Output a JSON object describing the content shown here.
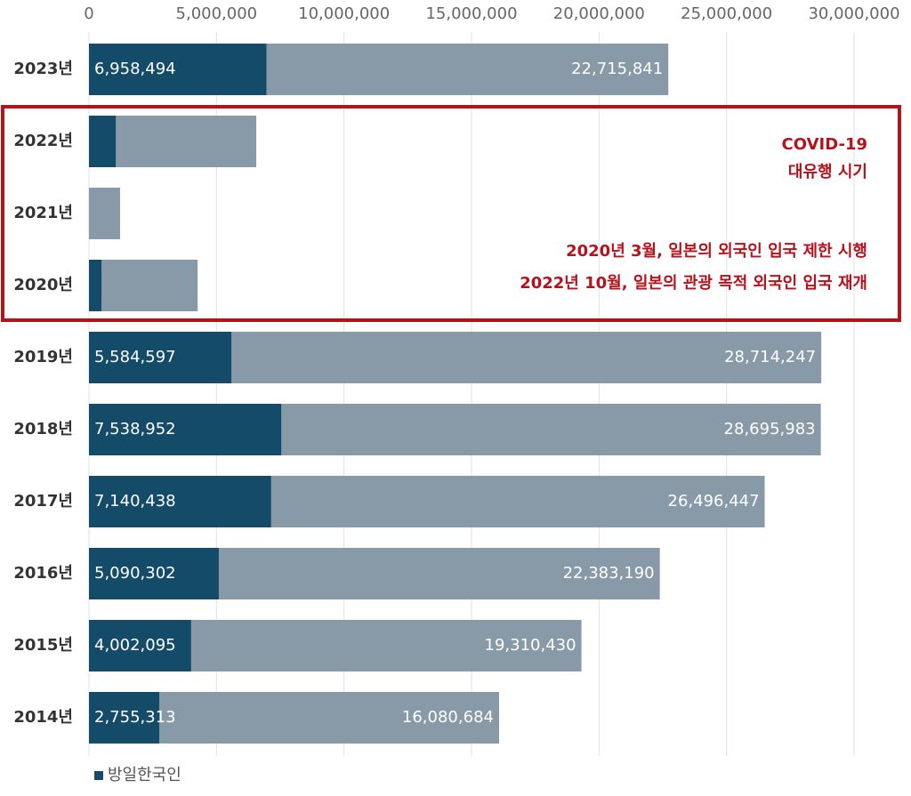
{
  "chart_data": {
    "type": "bar",
    "orientation": "horizontal",
    "overlap": true,
    "categories": [
      "2023년",
      "2022년",
      "2021년",
      "2020년",
      "2019년",
      "2018년",
      "2017년",
      "2016년",
      "2015년",
      "2014년"
    ],
    "series": [
      {
        "color": "#889aa8",
        "values": [
          22715841,
          6560000,
          1220000,
          4260000,
          28714247,
          28695983,
          26496447,
          22383190,
          19310430,
          16080684
        ],
        "value_labels": [
          "22,715,841",
          null,
          null,
          null,
          "28,714,247",
          "28,695,983",
          "26,496,447",
          "22,383,190",
          "19,310,430",
          "16,080,684"
        ]
      },
      {
        "name": "방일한국인",
        "color": "#134b68",
        "values": [
          6958494,
          1050000,
          0,
          490000,
          5584597,
          7538952,
          7140438,
          5090302,
          4002095,
          2755313
        ],
        "value_labels": [
          "6,958,494",
          null,
          null,
          null,
          "5,584,597",
          "7,538,952",
          "7,140,438",
          "5,090,302",
          "4,002,095",
          "2,755,313"
        ]
      }
    ],
    "xlim": [
      0,
      30000000
    ],
    "xticks": [
      0,
      {
        "value": 5000000,
        "label": "5,000,000"
      },
      {
        "value": 10000000,
        "label": "10,000,000"
      },
      {
        "value": 15000000,
        "label": "15,000,000"
      },
      {
        "value": 20000000,
        "label": "20,000,000"
      },
      {
        "value": 25000000,
        "label": "25,000,000"
      },
      {
        "value": 30000000,
        "label": "30,000,000"
      }
    ],
    "grid": true,
    "annotations": [
      "COVID-19",
      "대유행 시기",
      "2020년 3월, 일본의 외국인 입국 제한 시행",
      "2022년 10월, 일본의 관광 목적 외국인 입국 재개"
    ],
    "annotation_color": "#b5121b"
  }
}
